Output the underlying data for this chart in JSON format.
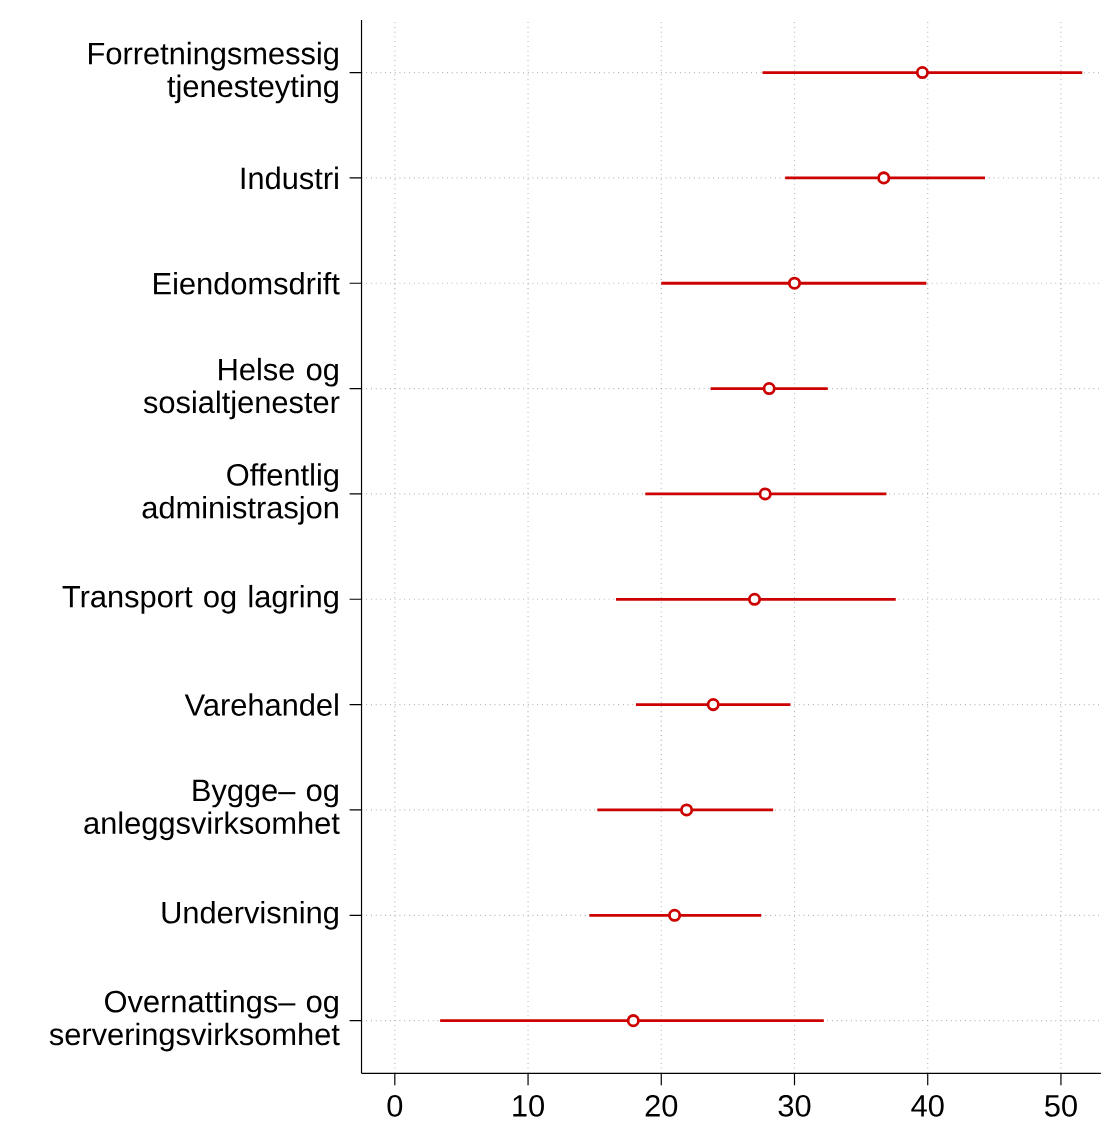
{
  "chart_data": {
    "type": "scatter",
    "orientation": "horizontal",
    "categories": [
      "Forretningsmessig tjenesteyting",
      "Industri",
      "Eiendomsdrift",
      "Helse og sosialtjenester",
      "Offentlig administrasjon",
      "Transport og lagring",
      "Varehandel",
      "Bygge– og anleggsvirksomhet",
      "Undervisning",
      "Overnattings– og serveringsvirksomhet"
    ],
    "values": [
      39.6,
      36.7,
      30.0,
      28.1,
      27.8,
      27.0,
      23.9,
      21.9,
      21.0,
      17.9
    ],
    "errors": [
      [
        27.6,
        51.6
      ],
      [
        29.3,
        44.3
      ],
      [
        20.0,
        39.9
      ],
      [
        23.7,
        32.5
      ],
      [
        18.8,
        36.9
      ],
      [
        16.6,
        37.6
      ],
      [
        18.1,
        29.7
      ],
      [
        15.2,
        28.4
      ],
      [
        14.6,
        27.5
      ],
      [
        3.4,
        32.2
      ]
    ],
    "color": "#cc0000",
    "marker": "circle",
    "xlim": [
      -2.5,
      53
    ],
    "xticks": [
      0,
      10,
      20,
      30,
      40,
      50
    ],
    "grid": true
  }
}
